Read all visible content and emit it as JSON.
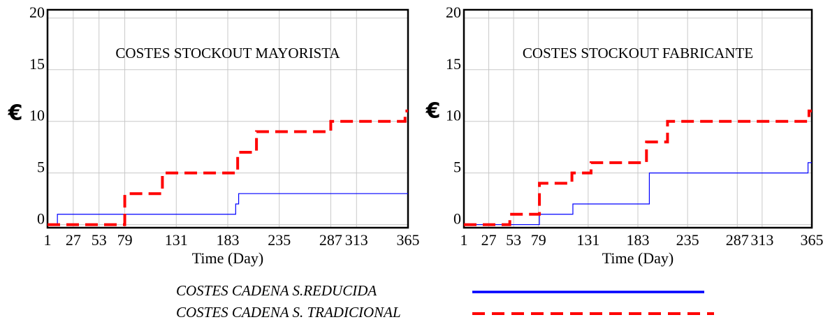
{
  "chart_data": [
    {
      "type": "line",
      "title": "COSTES STOCKOUT MAYORISTA",
      "xlabel": "Time (Day)",
      "ylabel": "€",
      "xlim": [
        1,
        365
      ],
      "ylim": [
        -0.3,
        20.8
      ],
      "xticks": [
        1,
        27,
        53,
        79,
        131,
        183,
        235,
        287,
        313,
        365
      ],
      "yticks": [
        0,
        5,
        10,
        15,
        20
      ],
      "grid": true,
      "series": [
        {
          "name": "COSTES CADENA S.REDUCIDA",
          "color": "#0000ff",
          "dash": false,
          "x": [
            1,
            11,
            11,
            191,
            191,
            194,
            194,
            365
          ],
          "values": [
            0,
            0,
            1,
            1,
            2,
            2,
            3,
            3
          ]
        },
        {
          "name": "COSTES CADENA S. TRADICIONAL",
          "color": "#ff0000",
          "dash": true,
          "x": [
            1,
            79,
            79,
            117,
            117,
            193,
            193,
            212,
            212,
            287,
            287,
            362,
            362,
            365
          ],
          "values": [
            0,
            0,
            3,
            3,
            5,
            5,
            7,
            7,
            9,
            9,
            10,
            10,
            11,
            11
          ]
        }
      ]
    },
    {
      "type": "line",
      "title": "COSTES STOCKOUT FABRICANTE",
      "xlabel": "Time (Day)",
      "ylabel": "€",
      "xlim": [
        1,
        365
      ],
      "ylim": [
        -0.3,
        20.8
      ],
      "xticks": [
        1,
        27,
        53,
        79,
        131,
        183,
        235,
        287,
        313,
        365
      ],
      "yticks": [
        0,
        5,
        10,
        15,
        20
      ],
      "grid": true,
      "series": [
        {
          "name": "COSTES CADENA S.REDUCIDA",
          "color": "#0000ff",
          "dash": false,
          "x": [
            1,
            80,
            80,
            115,
            115,
            195,
            195,
            361,
            361,
            365
          ],
          "values": [
            0,
            0,
            1,
            1,
            2,
            2,
            5,
            5,
            6,
            6
          ]
        },
        {
          "name": "COSTES CADENA S. TRADICIONAL",
          "color": "#ff0000",
          "dash": true,
          "x": [
            1,
            49,
            49,
            80,
            80,
            114,
            114,
            134,
            134,
            192,
            192,
            214,
            214,
            362,
            362,
            365
          ],
          "values": [
            0,
            0,
            1,
            1,
            4,
            4,
            5,
            5,
            6,
            6,
            8,
            8,
            10,
            10,
            11,
            11
          ]
        }
      ]
    }
  ]
}
